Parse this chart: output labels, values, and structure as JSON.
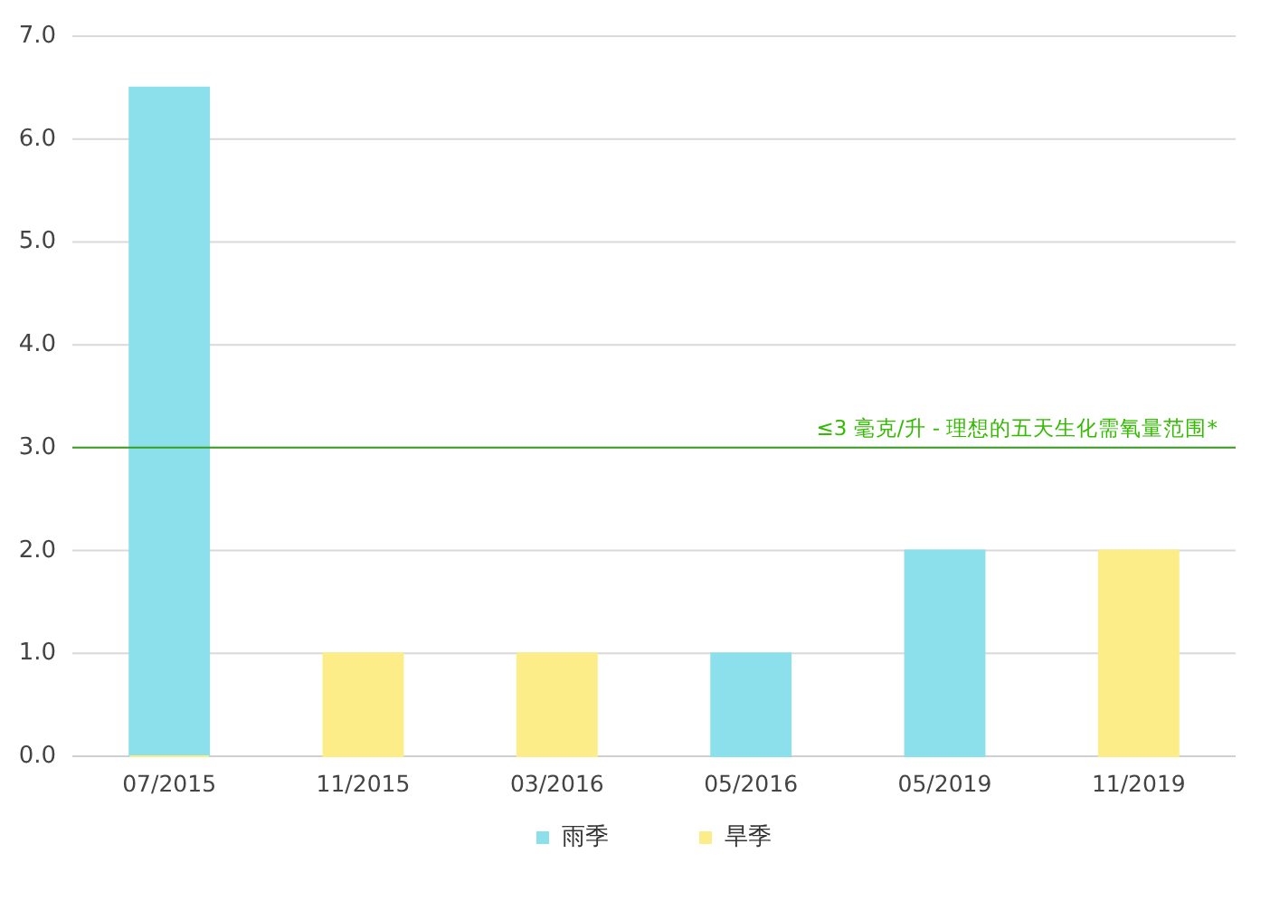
{
  "chart_data": {
    "type": "bar",
    "categories": [
      "07/2015",
      "11/2015",
      "03/2016",
      "05/2016",
      "05/2019",
      "11/2019"
    ],
    "series": [
      {
        "name": "雨季",
        "color": "#8be0ec",
        "values": [
          6.5,
          null,
          null,
          1.0,
          2.0,
          null
        ]
      },
      {
        "name": "旱季",
        "color": "#fded88",
        "values": [
          0,
          1.0,
          1.0,
          null,
          null,
          2.0
        ]
      }
    ],
    "ylim": [
      0,
      7
    ],
    "yticks": [
      {
        "value": 0,
        "label": "0.0"
      },
      {
        "value": 1,
        "label": "1.0"
      },
      {
        "value": 2,
        "label": "2.0"
      },
      {
        "value": 3,
        "label": "3.0"
      },
      {
        "value": 4,
        "label": "4.0"
      },
      {
        "value": 5,
        "label": "5.0"
      },
      {
        "value": 6,
        "label": "6.0"
      },
      {
        "value": 7,
        "label": "7.0"
      }
    ],
    "grid": "y",
    "legend": "bottom",
    "ref_lines": [
      {
        "axis": "y",
        "value": 3,
        "label": "≤3 毫克/升 - 理想的五天生化需氧量范围*",
        "color": "#3a9d23"
      }
    ]
  }
}
